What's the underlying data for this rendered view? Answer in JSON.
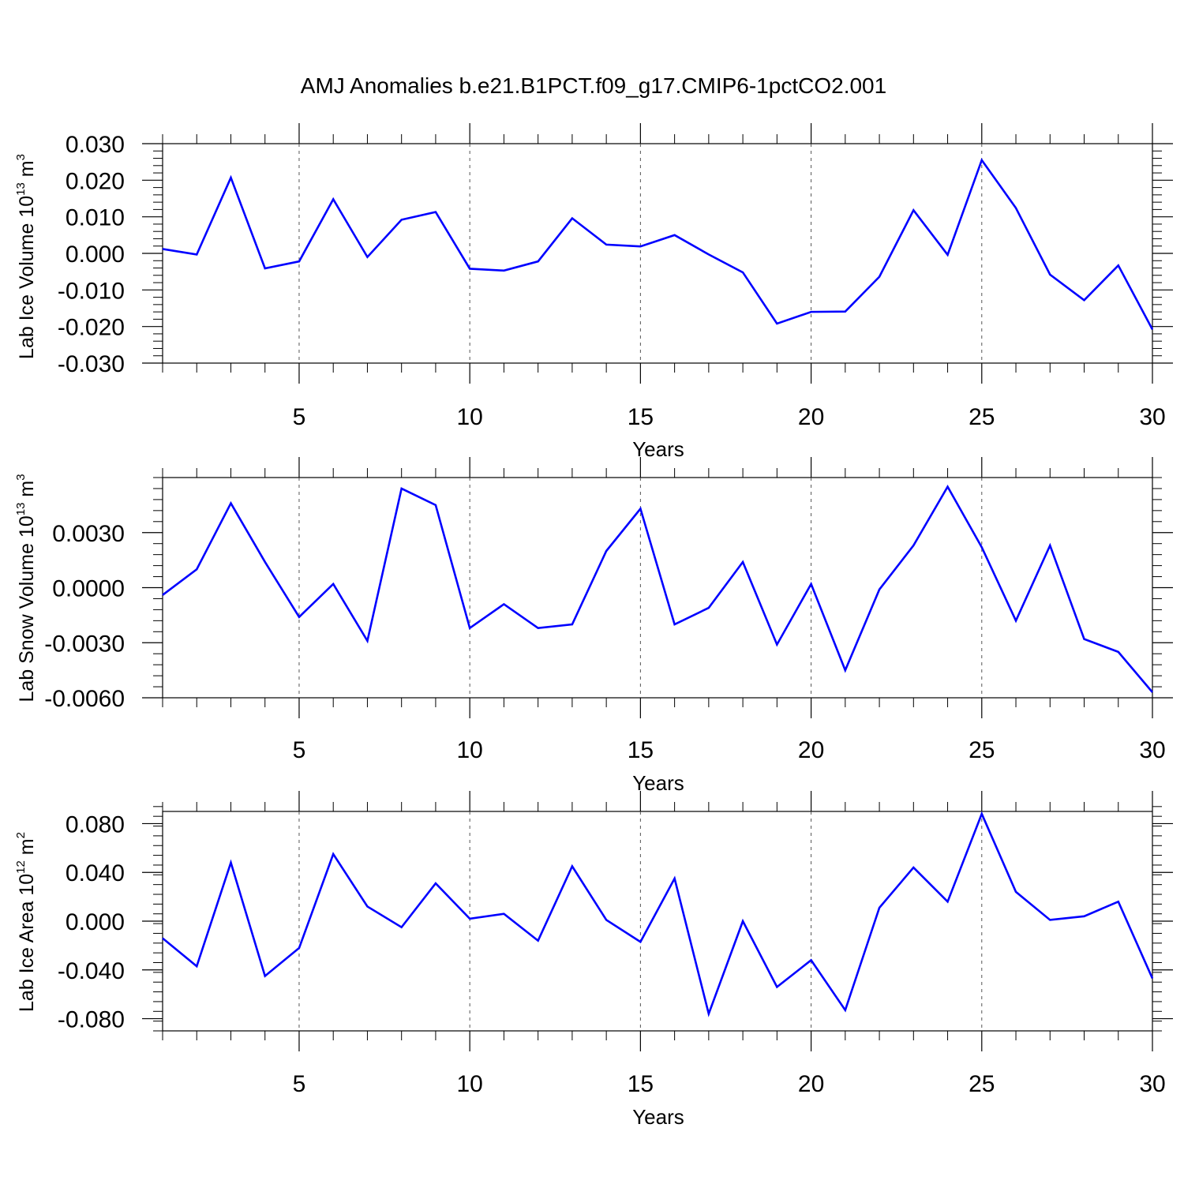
{
  "title": "AMJ Anomalies b.e21.B1PCT.f09_g17.CMIP6-1pctCO2.001",
  "colors": {
    "line": "#0000ff",
    "axis": "#000000",
    "grid": "#555555"
  },
  "chart_data": [
    {
      "type": "line",
      "xlabel": "Years",
      "ylabel_main": "Lab Ice Volume 10",
      "ylabel_exp": "13",
      "ylabel_unit": " m",
      "ylabel_unit_exp": "3",
      "xlim": [
        1,
        30
      ],
      "ylim": [
        -0.03,
        0.03
      ],
      "xticks": [
        5,
        10,
        15,
        20,
        25,
        30
      ],
      "yticks": [
        0.03,
        0.02,
        0.01,
        0.0,
        -0.01,
        -0.02,
        -0.03
      ],
      "ytick_labels": [
        "0.030",
        "0.020",
        "0.010",
        "0.000",
        "-0.010",
        "-0.020",
        "-0.030"
      ],
      "grid": "vertical dashed at x ticks",
      "x": [
        1,
        2,
        3,
        4,
        5,
        6,
        7,
        8,
        9,
        10,
        11,
        12,
        13,
        14,
        15,
        16,
        17,
        18,
        19,
        20,
        21,
        22,
        23,
        24,
        25,
        26,
        27,
        28,
        29,
        30
      ],
      "values": [
        0.0012,
        -0.0003,
        0.0207,
        -0.0041,
        -0.0022,
        0.0148,
        -0.001,
        0.0092,
        0.0113,
        -0.0042,
        -0.0047,
        -0.0022,
        0.0096,
        0.0024,
        0.0019,
        0.005,
        -0.0003,
        -0.0052,
        -0.0192,
        -0.016,
        -0.0159,
        -0.0064,
        0.0118,
        -0.0004,
        0.0255,
        0.0124,
        -0.0058,
        -0.0128,
        -0.0033,
        -0.0208
      ]
    },
    {
      "type": "line",
      "xlabel": "Years",
      "ylabel_main": "Lab Snow Volume 10",
      "ylabel_exp": "13",
      "ylabel_unit": " m",
      "ylabel_unit_exp": "3",
      "xlim": [
        1,
        30
      ],
      "ylim": [
        -0.006,
        0.006
      ],
      "xticks": [
        5,
        10,
        15,
        20,
        25,
        30
      ],
      "yticks": [
        0.003,
        0.0,
        -0.003,
        -0.006
      ],
      "ytick_labels": [
        "0.0030",
        "0.0000",
        "-0.0030",
        "-0.0060"
      ],
      "grid": "vertical dashed at x ticks",
      "x": [
        1,
        2,
        3,
        4,
        5,
        6,
        7,
        8,
        9,
        10,
        11,
        12,
        13,
        14,
        15,
        16,
        17,
        18,
        19,
        20,
        21,
        22,
        23,
        24,
        25,
        26,
        27,
        28,
        29,
        30
      ],
      "values": [
        -0.0004,
        0.001,
        0.0046,
        0.0014,
        -0.0016,
        0.0002,
        -0.0029,
        0.0054,
        0.0045,
        -0.0022,
        -0.0009,
        -0.0022,
        -0.002,
        0.002,
        0.0043,
        -0.002,
        -0.0011,
        0.0014,
        -0.0031,
        0.0002,
        -0.0045,
        -0.0001,
        0.0023,
        0.0055,
        0.0022,
        -0.0018,
        0.0023,
        -0.0028,
        -0.0035,
        -0.0057
      ]
    },
    {
      "type": "line",
      "xlabel": "Years",
      "ylabel_main": "Lab Ice Area 10",
      "ylabel_exp": "12",
      "ylabel_unit": " m",
      "ylabel_unit_exp": "2",
      "xlim": [
        1,
        30
      ],
      "ylim": [
        -0.09,
        0.09
      ],
      "xticks": [
        5,
        10,
        15,
        20,
        25,
        30
      ],
      "yticks": [
        0.08,
        0.04,
        0.0,
        -0.04,
        -0.08
      ],
      "ytick_labels": [
        "0.080",
        "0.040",
        "0.000",
        "-0.040",
        "-0.080"
      ],
      "grid": "vertical dashed at x ticks",
      "x": [
        1,
        2,
        3,
        4,
        5,
        6,
        7,
        8,
        9,
        10,
        11,
        12,
        13,
        14,
        15,
        16,
        17,
        18,
        19,
        20,
        21,
        22,
        23,
        24,
        25,
        26,
        27,
        28,
        29,
        30
      ],
      "values": [
        -0.014,
        -0.037,
        0.048,
        -0.045,
        -0.022,
        0.055,
        0.012,
        -0.005,
        0.031,
        0.002,
        0.006,
        -0.016,
        0.045,
        0.001,
        -0.017,
        0.035,
        -0.076,
        0.0,
        -0.054,
        -0.032,
        -0.073,
        0.011,
        0.044,
        0.016,
        0.088,
        0.024,
        0.001,
        0.004,
        0.016,
        -0.047
      ]
    }
  ]
}
